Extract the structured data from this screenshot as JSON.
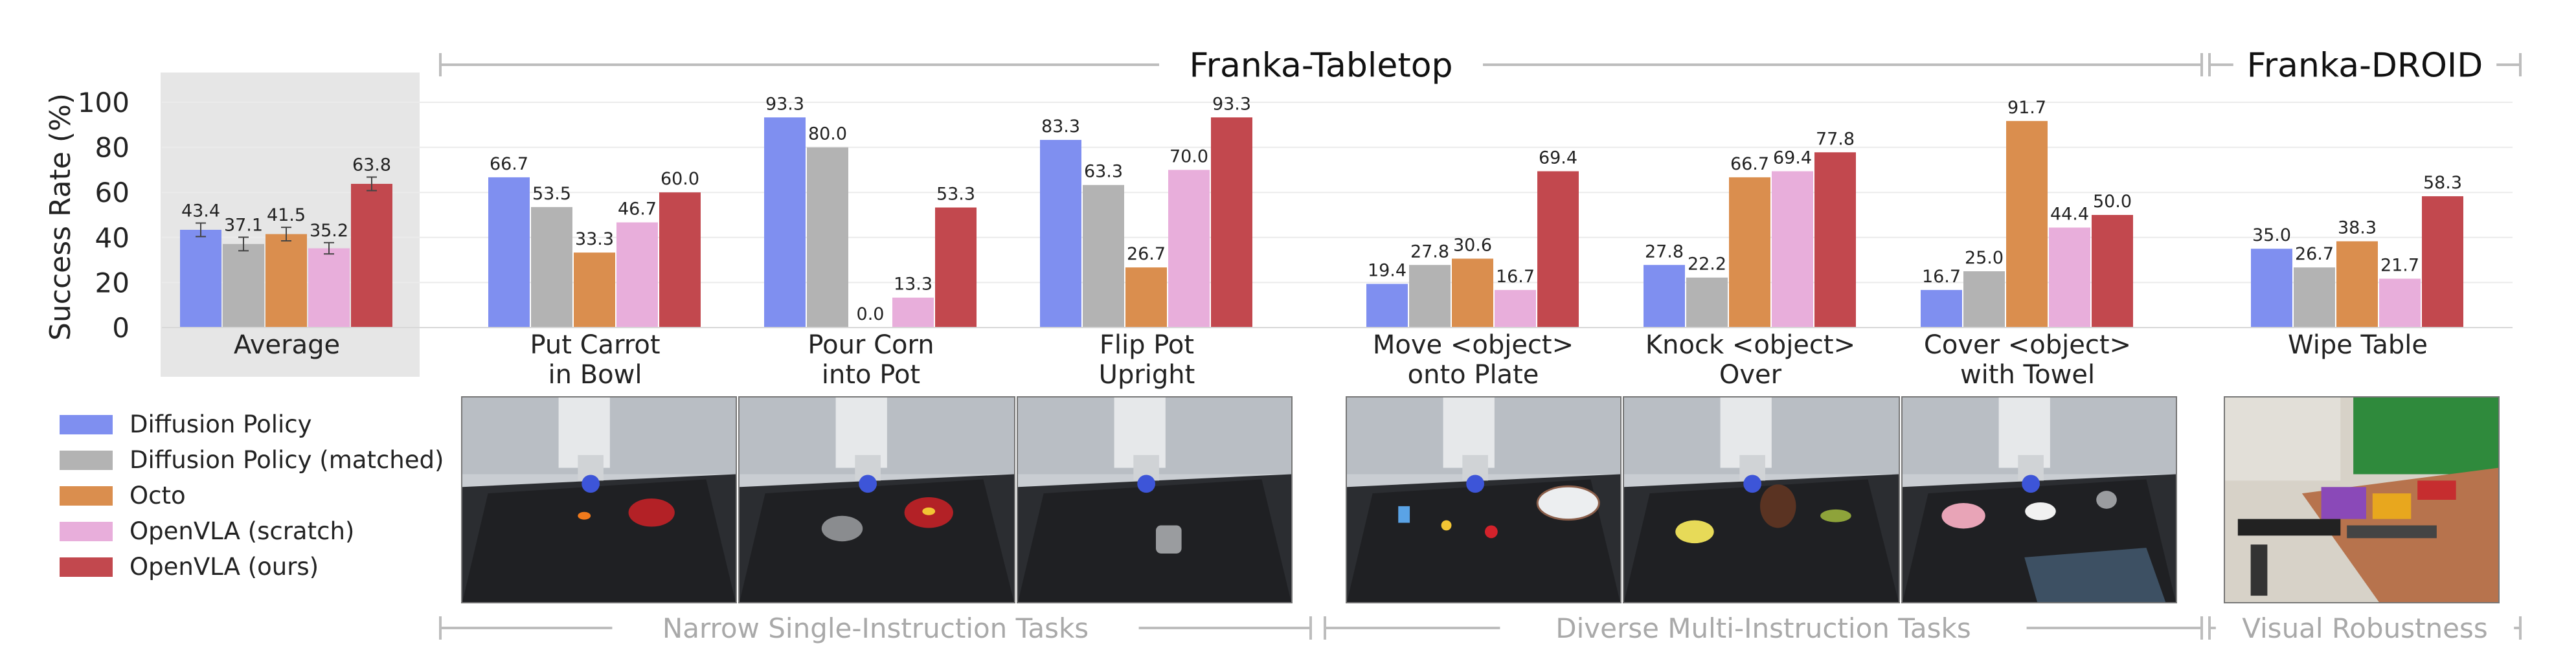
{
  "chart_data": {
    "type": "bar",
    "ylabel": "Success Rate (%)",
    "yticks": [
      0,
      20,
      40,
      60,
      80,
      100
    ],
    "ylim": [
      0,
      105
    ],
    "grid": true,
    "series": [
      {
        "name": "Diffusion Policy",
        "color": "#7f8ff0"
      },
      {
        "name": "Diffusion Policy (matched)",
        "color": "#b3b3b3"
      },
      {
        "name": "Octo",
        "color": "#da8e4e"
      },
      {
        "name": "OpenVLA (scratch)",
        "color": "#e8aedb"
      },
      {
        "name": "OpenVLA (ours)",
        "color": "#c2484e"
      }
    ],
    "groups": [
      {
        "label": [
          "Average"
        ],
        "values": [
          43.4,
          37.1,
          41.5,
          35.2,
          63.8
        ],
        "labels": [
          "43.4",
          "37.1",
          "41.5",
          "35.2",
          "63.8"
        ],
        "error_bars": true,
        "shaded": true
      },
      {
        "label": [
          "Put Carrot",
          "in Bowl"
        ],
        "values": [
          66.7,
          53.5,
          33.3,
          46.7,
          60.0
        ],
        "labels": [
          "66.7",
          "53.5",
          "33.3",
          "46.7",
          "60.0"
        ]
      },
      {
        "label": [
          "Pour Corn",
          "into Pot"
        ],
        "values": [
          93.3,
          80.0,
          0.0,
          13.3,
          53.3
        ],
        "labels": [
          "93.3",
          "80.0",
          "0.0",
          "13.3",
          "53.3"
        ]
      },
      {
        "label": [
          "Flip Pot",
          "Upright"
        ],
        "values": [
          83.3,
          63.3,
          26.7,
          70.0,
          93.3
        ],
        "labels": [
          "83.3",
          "63.3",
          "26.7",
          "70.0",
          "93.3"
        ]
      },
      {
        "label": [
          "Move <object>",
          "onto Plate"
        ],
        "values": [
          19.4,
          27.8,
          30.6,
          16.7,
          69.4
        ],
        "labels": [
          "19.4",
          "27.8",
          "30.6",
          "16.7",
          "69.4"
        ]
      },
      {
        "label": [
          "Knock <object>",
          "Over"
        ],
        "values": [
          27.8,
          22.2,
          66.7,
          69.4,
          77.8
        ],
        "labels": [
          "27.8",
          "22.2",
          "66.7",
          "69.4",
          "77.8"
        ]
      },
      {
        "label": [
          "Cover <object>",
          "with Towel"
        ],
        "values": [
          16.7,
          25.0,
          91.7,
          44.4,
          50.0
        ],
        "labels": [
          "16.7",
          "25.0",
          "91.7",
          "44.4",
          "50.0"
        ]
      },
      {
        "label": [
          "Wipe Table"
        ],
        "values": [
          35.0,
          26.7,
          38.3,
          21.7,
          58.3
        ],
        "labels": [
          "35.0",
          "26.7",
          "38.3",
          "21.7",
          "58.3"
        ]
      }
    ],
    "average_error": [
      3.0,
      3.0,
      3.0,
      2.5,
      3.0
    ],
    "top_brackets": [
      "Franka-Tabletop",
      "Franka-DROID"
    ],
    "bottom_brackets": [
      "Narrow Single-Instruction Tasks",
      "Diverse Multi-Instruction Tasks",
      "Visual Robustness"
    ]
  }
}
